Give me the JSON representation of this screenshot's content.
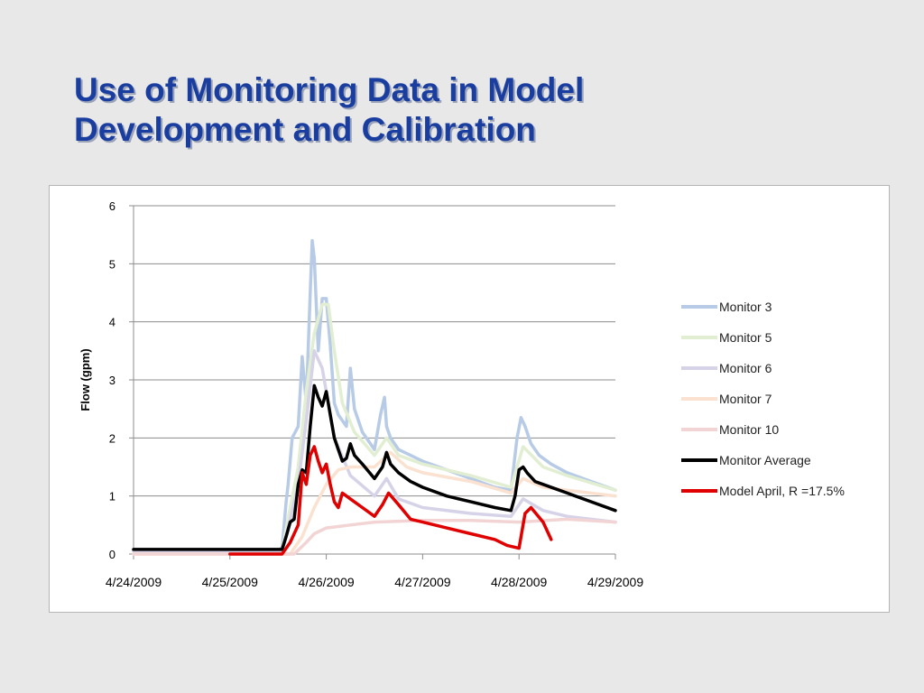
{
  "slide": {
    "title_line1": "Use of Monitoring Data in Model",
    "title_line2": "Development and Calibration",
    "title_color": "#1a3da0",
    "background": "#e8e8e8"
  },
  "chart_data": {
    "type": "line",
    "title": "",
    "xlabel": "",
    "ylabel": "Flow (gpm)",
    "xlim": [
      "4/24/2009",
      "4/29/2009"
    ],
    "ylim": [
      0,
      6
    ],
    "x_ticks": [
      "4/24/2009",
      "4/25/2009",
      "4/26/2009",
      "4/27/2009",
      "4/28/2009",
      "4/29/2009"
    ],
    "y_ticks": [
      "0",
      "1",
      "2",
      "3",
      "4",
      "5",
      "6"
    ],
    "grid": true,
    "legend_position": "right",
    "series": [
      {
        "name": "Monitor 3",
        "color": "#b7cbe6",
        "width": 3.5,
        "x": [
          "2009-04-24 00:00",
          "2009-04-25 12:00",
          "2009-04-25 13:00",
          "2009-04-25 14:00",
          "2009-04-25 14:30",
          "2009-04-25 15:30",
          "2009-04-25 17:00",
          "2009-04-25 18:00",
          "2009-04-25 19:00",
          "2009-04-25 20:00",
          "2009-04-25 20:30",
          "2009-04-25 21:00",
          "2009-04-25 22:00",
          "2009-04-25 23:00",
          "2009-04-26 00:00",
          "2009-04-26 01:00",
          "2009-04-26 02:00",
          "2009-04-26 03:00",
          "2009-04-26 05:00",
          "2009-04-26 06:00",
          "2009-04-26 07:00",
          "2009-04-26 09:00",
          "2009-04-26 12:00",
          "2009-04-26 13:30",
          "2009-04-26 14:30",
          "2009-04-26 15:00",
          "2009-04-26 16:00",
          "2009-04-26 18:00",
          "2009-04-26 21:00",
          "2009-04-27 00:00",
          "2009-04-27 06:00",
          "2009-04-27 12:00",
          "2009-04-27 18:00",
          "2009-04-27 22:00",
          "2009-04-27 23:30",
          "2009-04-28 00:30",
          "2009-04-28 01:30",
          "2009-04-28 03:00",
          "2009-04-28 05:00",
          "2009-04-28 08:00",
          "2009-04-28 12:00",
          "2009-04-28 18:00",
          "2009-04-29 00:00"
        ],
        "y": [
          0.08,
          0.08,
          0.1,
          0.9,
          1.2,
          2.0,
          2.2,
          3.4,
          2.6,
          4.5,
          5.4,
          5.1,
          3.5,
          4.4,
          4.4,
          3.6,
          2.6,
          2.4,
          2.2,
          3.2,
          2.5,
          2.1,
          1.8,
          2.4,
          2.7,
          2.2,
          2.0,
          1.8,
          1.7,
          1.6,
          1.45,
          1.3,
          1.15,
          1.1,
          2.0,
          2.35,
          2.2,
          1.9,
          1.7,
          1.55,
          1.4,
          1.25,
          1.1
        ]
      },
      {
        "name": "Monitor 5",
        "color": "#e2eed2",
        "width": 3.5,
        "x": [
          "2009-04-24 00:00",
          "2009-04-25 13:00",
          "2009-04-25 15:00",
          "2009-04-25 17:00",
          "2009-04-25 19:00",
          "2009-04-25 21:00",
          "2009-04-25 23:00",
          "2009-04-26 00:30",
          "2009-04-26 02:00",
          "2009-04-26 04:00",
          "2009-04-26 07:00",
          "2009-04-26 12:00",
          "2009-04-26 15:00",
          "2009-04-26 18:00",
          "2009-04-27 00:00",
          "2009-04-27 12:00",
          "2009-04-27 22:00",
          "2009-04-28 01:00",
          "2009-04-28 06:00",
          "2009-04-28 12:00",
          "2009-04-29 00:00"
        ],
        "y": [
          0.06,
          0.06,
          0.8,
          1.5,
          2.8,
          3.8,
          4.3,
          4.3,
          3.5,
          2.6,
          2.1,
          1.7,
          2.0,
          1.7,
          1.55,
          1.35,
          1.15,
          1.85,
          1.5,
          1.35,
          1.1
        ]
      },
      {
        "name": "Monitor 6",
        "color": "#d6d3e8",
        "width": 3.5,
        "x": [
          "2009-04-24 00:00",
          "2009-04-25 13:00",
          "2009-04-25 15:00",
          "2009-04-25 17:00",
          "2009-04-25 19:00",
          "2009-04-25 21:00",
          "2009-04-25 23:00",
          "2009-04-26 02:00",
          "2009-04-26 06:00",
          "2009-04-26 12:00",
          "2009-04-26 15:00",
          "2009-04-26 18:00",
          "2009-04-27 00:00",
          "2009-04-27 12:00",
          "2009-04-27 22:00",
          "2009-04-28 01:00",
          "2009-04-28 06:00",
          "2009-04-28 12:00",
          "2009-04-29 00:00"
        ],
        "y": [
          0.05,
          0.05,
          0.6,
          1.2,
          2.3,
          3.5,
          3.2,
          2.0,
          1.35,
          1.0,
          1.3,
          0.95,
          0.8,
          0.7,
          0.65,
          0.95,
          0.75,
          0.65,
          0.55
        ]
      },
      {
        "name": "Monitor 7",
        "color": "#fbe1cf",
        "width": 3.5,
        "x": [
          "2009-04-24 00:00",
          "2009-04-25 15:00",
          "2009-04-25 18:00",
          "2009-04-25 21:00",
          "2009-04-26 00:00",
          "2009-04-26 03:00",
          "2009-04-26 06:00",
          "2009-04-26 12:00",
          "2009-04-26 16:00",
          "2009-04-26 20:00",
          "2009-04-27 00:00",
          "2009-04-27 12:00",
          "2009-04-27 22:00",
          "2009-04-28 01:00",
          "2009-04-28 06:00",
          "2009-04-28 12:00",
          "2009-04-29 00:00"
        ],
        "y": [
          0.0,
          0.0,
          0.3,
          0.8,
          1.2,
          1.45,
          1.5,
          1.5,
          1.75,
          1.5,
          1.4,
          1.25,
          1.05,
          1.3,
          1.15,
          1.1,
          1.0
        ]
      },
      {
        "name": "Monitor 10",
        "color": "#f2d4d4",
        "width": 3.5,
        "x": [
          "2009-04-24 00:00",
          "2009-04-25 16:00",
          "2009-04-25 19:00",
          "2009-04-25 21:00",
          "2009-04-26 00:00",
          "2009-04-26 06:00",
          "2009-04-26 12:00",
          "2009-04-27 00:00",
          "2009-04-27 12:00",
          "2009-04-28 00:00",
          "2009-04-28 12:00",
          "2009-04-29 00:00"
        ],
        "y": [
          0.0,
          0.0,
          0.2,
          0.35,
          0.45,
          0.5,
          0.55,
          0.58,
          0.58,
          0.55,
          0.6,
          0.55
        ]
      },
      {
        "name": "Monitor Average",
        "color": "#000000",
        "width": 3.5,
        "x": [
          "2009-04-24 00:00",
          "2009-04-25 13:00",
          "2009-04-25 14:00",
          "2009-04-25 15:00",
          "2009-04-25 16:00",
          "2009-04-25 17:00",
          "2009-04-25 18:00",
          "2009-04-25 19:00",
          "2009-04-25 20:00",
          "2009-04-25 21:00",
          "2009-04-25 22:00",
          "2009-04-25 23:00",
          "2009-04-26 00:00",
          "2009-04-26 01:00",
          "2009-04-26 02:00",
          "2009-04-26 03:00",
          "2009-04-26 04:00",
          "2009-04-26 05:00",
          "2009-04-26 06:00",
          "2009-04-26 07:00",
          "2009-04-26 09:00",
          "2009-04-26 12:00",
          "2009-04-26 14:00",
          "2009-04-26 15:00",
          "2009-04-26 16:00",
          "2009-04-26 18:00",
          "2009-04-26 21:00",
          "2009-04-27 00:00",
          "2009-04-27 06:00",
          "2009-04-27 12:00",
          "2009-04-27 18:00",
          "2009-04-27 22:00",
          "2009-04-27 23:00",
          "2009-04-28 00:00",
          "2009-04-28 01:00",
          "2009-04-28 02:00",
          "2009-04-28 04:00",
          "2009-04-28 06:00",
          "2009-04-28 12:00",
          "2009-04-28 18:00",
          "2009-04-29 00:00"
        ],
        "y": [
          0.08,
          0.08,
          0.3,
          0.55,
          0.6,
          1.2,
          1.45,
          1.4,
          2.2,
          2.9,
          2.7,
          2.55,
          2.8,
          2.4,
          2.0,
          1.8,
          1.6,
          1.65,
          1.9,
          1.7,
          1.55,
          1.3,
          1.5,
          1.75,
          1.55,
          1.4,
          1.25,
          1.15,
          1.0,
          0.9,
          0.8,
          0.75,
          1.0,
          1.45,
          1.5,
          1.4,
          1.25,
          1.2,
          1.05,
          0.9,
          0.75
        ]
      },
      {
        "name": "Model April, R =17.5%",
        "color": "#e00000",
        "width": 3.5,
        "x": [
          "2009-04-25 00:00",
          "2009-04-25 13:00",
          "2009-04-25 14:00",
          "2009-04-25 15:00",
          "2009-04-25 17:00",
          "2009-04-25 18:00",
          "2009-04-25 19:00",
          "2009-04-25 20:00",
          "2009-04-25 21:00",
          "2009-04-25 22:00",
          "2009-04-25 23:00",
          "2009-04-26 00:00",
          "2009-04-26 01:00",
          "2009-04-26 02:00",
          "2009-04-26 03:00",
          "2009-04-26 04:00",
          "2009-04-26 05:00",
          "2009-04-26 06:00",
          "2009-04-26 09:00",
          "2009-04-26 12:00",
          "2009-04-26 14:00",
          "2009-04-26 15:30",
          "2009-04-26 18:00",
          "2009-04-26 21:00",
          "2009-04-27 00:00",
          "2009-04-27 06:00",
          "2009-04-27 12:00",
          "2009-04-27 18:00",
          "2009-04-27 21:00",
          "2009-04-28 00:00",
          "2009-04-28 01:30",
          "2009-04-28 03:00",
          "2009-04-28 06:00",
          "2009-04-28 08:00"
        ],
        "y": [
          0.0,
          0.0,
          0.1,
          0.2,
          0.5,
          1.4,
          1.2,
          1.7,
          1.85,
          1.6,
          1.4,
          1.55,
          1.2,
          0.9,
          0.8,
          1.05,
          1.0,
          0.95,
          0.8,
          0.65,
          0.85,
          1.05,
          0.85,
          0.6,
          0.55,
          0.45,
          0.35,
          0.25,
          0.15,
          0.1,
          0.7,
          0.8,
          0.55,
          0.25
        ]
      }
    ]
  }
}
